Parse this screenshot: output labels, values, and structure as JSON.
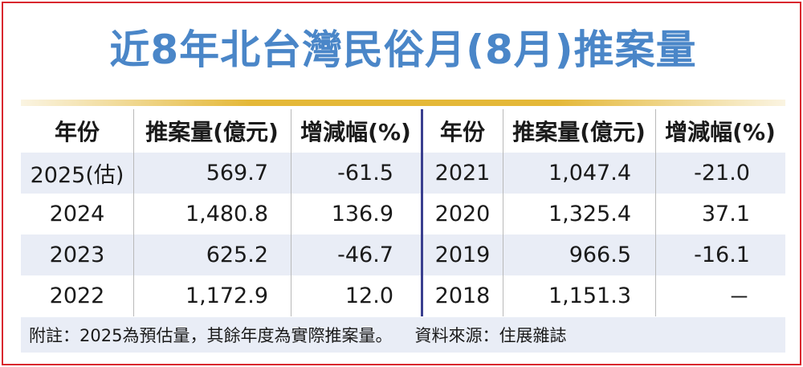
{
  "title": "近8年北台灣民俗月(8月)推案量",
  "chart_data": {
    "type": "table",
    "title": "近8年北台灣民俗月(8月)推案量",
    "columns": [
      "年份",
      "推案量(億元)",
      "增減幅(%)"
    ],
    "left_rows": [
      {
        "year": "2025(估)",
        "volume": "569.7",
        "change": "-61.5"
      },
      {
        "year": "2024",
        "volume": "1,480.8",
        "change": "136.9"
      },
      {
        "year": "2023",
        "volume": "625.2",
        "change": "-46.7"
      },
      {
        "year": "2022",
        "volume": "1,172.9",
        "change": "12.0"
      }
    ],
    "right_rows": [
      {
        "year": "2021",
        "volume": "1,047.4",
        "change": "-21.0"
      },
      {
        "year": "2020",
        "volume": "1,325.4",
        "change": "37.1"
      },
      {
        "year": "2019",
        "volume": "966.5",
        "change": "-16.1"
      },
      {
        "year": "2018",
        "volume": "1,151.3",
        "change": "－"
      }
    ]
  },
  "footnote": {
    "note": "附註：2025為預估量，其餘年度為實際推案量。",
    "source": "資料來源：住展雜誌"
  },
  "colors": {
    "title": "#4a86c8",
    "border": "#d9272e",
    "gold_bar": "#e4b838",
    "row_shade": "#e9edf6",
    "divider": "#3a3f8f"
  }
}
